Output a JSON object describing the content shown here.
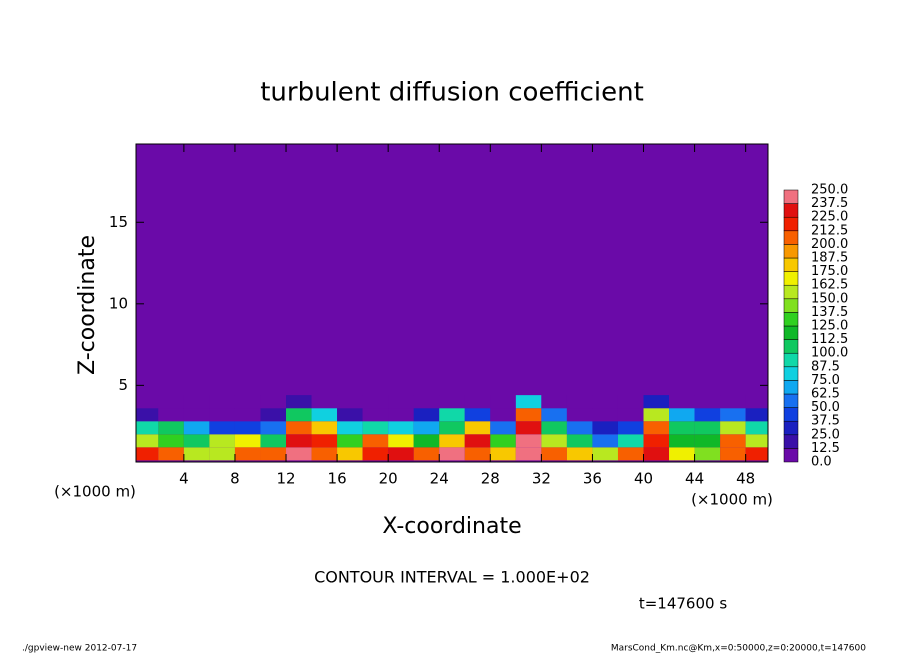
{
  "chart_data": {
    "type": "contour",
    "title": "turbulent diffusion coefficient",
    "xlabel": "X-coordinate",
    "ylabel": "Z-coordinate",
    "xunit": "(×1000 m)",
    "contour_interval": "CONTOUR INTERVAL = 1.000E+02",
    "time_label": "t=147600 s",
    "footer_left": "./gpview-new  2012-07-17",
    "footer_right": "MarsCond_Km.nc@Km,x=0:50000,z=0:20000,t=147600",
    "xlim": [
      0.25,
      49.75
    ],
    "ylim": [
      0.3,
      19.8
    ],
    "xticks": [
      4,
      8,
      12,
      16,
      20,
      24,
      28,
      32,
      36,
      40,
      44,
      48
    ],
    "yticks": [
      5,
      10,
      15
    ],
    "x": [
      1,
      3,
      5,
      7,
      9,
      11,
      13,
      15,
      17,
      19,
      21,
      23,
      25,
      27,
      29,
      31,
      33,
      35,
      37,
      39,
      41,
      43,
      45,
      47,
      49
    ],
    "z": [
      0.8,
      1.6,
      2.4,
      3.2,
      4.0
    ],
    "values": [
      [
        220,
        200,
        160,
        150,
        210,
        200,
        240,
        200,
        180,
        220,
        230,
        200,
        240,
        210,
        180,
        250,
        200,
        180,
        150,
        200,
        230,
        170,
        140,
        200,
        220
      ],
      [
        150,
        130,
        100,
        160,
        170,
        110,
        230,
        220,
        130,
        200,
        170,
        120,
        180,
        230,
        130,
        240,
        160,
        110,
        60,
        90,
        220,
        120,
        120,
        200,
        160
      ],
      [
        90,
        110,
        70,
        40,
        40,
        60,
        200,
        180,
        80,
        90,
        80,
        70,
        110,
        180,
        50,
        230,
        110,
        60,
        30,
        40,
        200,
        100,
        110,
        150,
        90
      ],
      [
        20,
        10,
        5,
        0,
        5,
        20,
        110,
        80,
        20,
        10,
        10,
        30,
        90,
        40,
        5,
        200,
        60,
        5,
        0,
        5,
        150,
        70,
        40,
        50,
        30
      ],
      [
        0,
        0,
        0,
        0,
        0,
        0,
        20,
        10,
        0,
        0,
        0,
        0,
        5,
        0,
        0,
        80,
        10,
        0,
        0,
        0,
        30,
        10,
        0,
        0,
        10
      ]
    ],
    "levels": [
      {
        "value": 0,
        "label": "0.0"
      },
      {
        "value": 12.5,
        "label": "12.5"
      },
      {
        "value": 25,
        "label": "25.0"
      },
      {
        "value": 37.5,
        "label": "37.5"
      },
      {
        "value": 50,
        "label": "50.0"
      },
      {
        "value": 62.5,
        "label": "62.5"
      },
      {
        "value": 75,
        "label": "75.0"
      },
      {
        "value": 87.5,
        "label": "87.5"
      },
      {
        "value": 100,
        "label": "100.0"
      },
      {
        "value": 112.5,
        "label": "112.5"
      },
      {
        "value": 125,
        "label": "125.0"
      },
      {
        "value": 137.5,
        "label": "137.5"
      },
      {
        "value": 150,
        "label": "150.0"
      },
      {
        "value": 162.5,
        "label": "162.5"
      },
      {
        "value": 175,
        "label": "175.0"
      },
      {
        "value": 187.5,
        "label": "187.5"
      },
      {
        "value": 200,
        "label": "200.0"
      },
      {
        "value": 212.5,
        "label": "212.5"
      },
      {
        "value": 225,
        "label": "225.0"
      },
      {
        "value": 237.5,
        "label": "237.5"
      },
      {
        "value": 250,
        "label": "250.0"
      }
    ],
    "colors": [
      "#6a0aa8",
      "#3a10a8",
      "#1a20c0",
      "#1040e0",
      "#1870f0",
      "#10a8f0",
      "#10d0e0",
      "#10d8a8",
      "#10c860",
      "#10b828",
      "#30d020",
      "#80e020",
      "#b8e820",
      "#f0f000",
      "#f8c800",
      "#f89800",
      "#f86000",
      "#f02000",
      "#e01010",
      "#f07080"
    ]
  }
}
